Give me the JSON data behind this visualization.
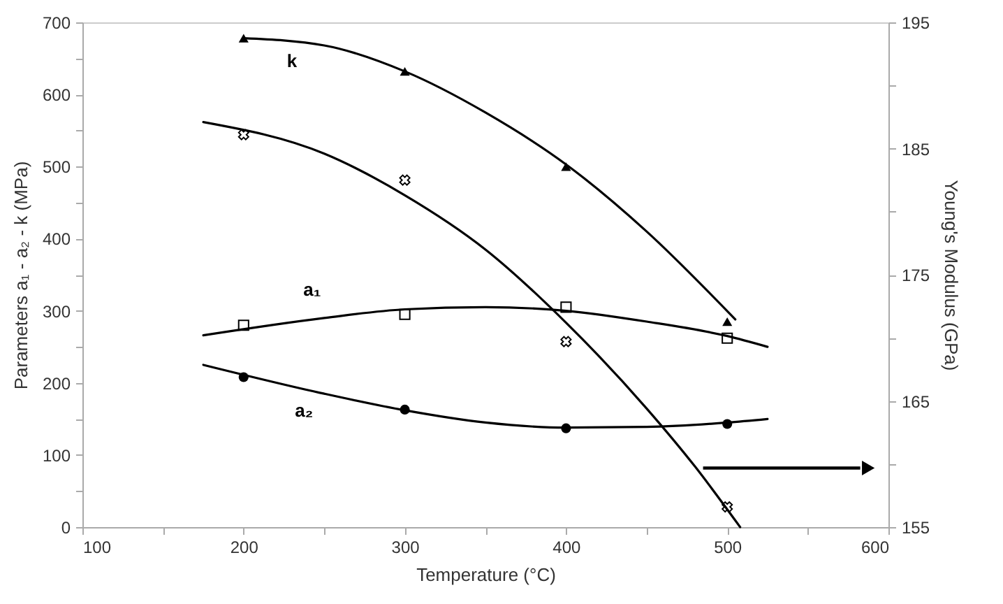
{
  "chart_data": {
    "type": "scatter",
    "xlabel": "Temperature (°C)",
    "ylabel": "Parameters  a₁ - a₂ - k  (MPa)",
    "y2label": "Young's Modulus (GPa)",
    "xlim": [
      100,
      600
    ],
    "xticks": [
      100,
      {
        "value": 150,
        "label": null
      },
      200,
      {
        "value": 250,
        "label": null
      },
      300,
      {
        "value": 350,
        "label": null
      },
      400,
      {
        "value": 450,
        "label": null
      },
      500,
      {
        "value": 550,
        "label": null
      },
      600
    ],
    "ylim": [
      0,
      700
    ],
    "yticks": [
      0,
      {
        "value": 50,
        "label": null
      },
      100,
      {
        "value": 150,
        "label": null
      },
      200,
      {
        "value": 250,
        "label": null
      },
      300,
      {
        "value": 350,
        "label": null
      },
      400,
      {
        "value": 450,
        "label": null
      },
      500,
      {
        "value": 550,
        "label": null
      },
      600,
      {
        "value": 650,
        "label": null
      },
      700
    ],
    "y2lim": [
      155,
      195
    ],
    "y2ticks": [
      155,
      {
        "value": 160,
        "label": null
      },
      165,
      {
        "value": 170,
        "label": null
      },
      175,
      {
        "value": 180,
        "label": null
      },
      185,
      {
        "value": 190,
        "label": null
      },
      195
    ],
    "grid": false,
    "series": [
      {
        "marker": "triangle",
        "color": "#000000",
        "x": [
          200,
          300,
          400,
          500
        ],
        "values": [
          678,
          632,
          500,
          285
        ]
      },
      {
        "marker": "square",
        "color": "#000000",
        "x": [
          200,
          300,
          400,
          500
        ],
        "values": [
          280,
          295,
          305,
          262
        ]
      },
      {
        "marker": "circle",
        "color": "#000000",
        "x": [
          200,
          300,
          400,
          500
        ],
        "values": [
          208,
          163,
          137,
          143
        ]
      },
      {
        "marker": "cross",
        "axis": "y2",
        "color": "#000000",
        "x": [
          200,
          300,
          400,
          500
        ],
        "values": [
          186.1,
          182.5,
          169.7,
          156.6
        ]
      },
      {
        "type": "line",
        "marker": "none",
        "color": "#000000",
        "x": [
          200,
          250,
          300,
          350,
          400,
          450,
          505
        ],
        "values": [
          678,
          668,
          632,
          575,
          503,
          410,
          288
        ]
      },
      {
        "type": "line",
        "marker": "none",
        "color": "#000000",
        "x": [
          175,
          250,
          300,
          350,
          400,
          450,
          500,
          525
        ],
        "values": [
          266,
          290,
          302,
          305,
          300,
          285,
          265,
          250
        ]
      },
      {
        "type": "line",
        "marker": "none",
        "color": "#000000",
        "x": [
          175,
          250,
          300,
          350,
          400,
          450,
          500,
          525
        ],
        "values": [
          225,
          185,
          162,
          145,
          138,
          139,
          145,
          150
        ]
      },
      {
        "type": "line",
        "marker": "none",
        "axis": "y2",
        "color": "#000000",
        "x": [
          175,
          250,
          300,
          350,
          400,
          450,
          480,
          508
        ],
        "values": [
          187.1,
          184.6,
          181.3,
          177.0,
          171.2,
          164.4,
          159.8,
          155
        ]
      }
    ],
    "annotations": [
      "k",
      "a₁",
      "a₂"
    ]
  }
}
